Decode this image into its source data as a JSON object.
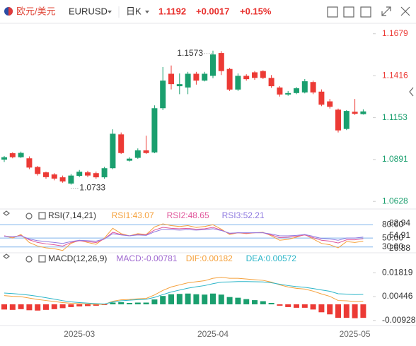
{
  "header": {
    "pair_cn": "欧元/美元",
    "symbol": "EURUSD",
    "period": "日K",
    "price": "1.1192",
    "change": "+0.0017",
    "change_pct": "+0.15%"
  },
  "chart_data": [
    {
      "type": "candlestick",
      "categories": [
        null,
        null,
        null,
        null,
        null,
        null,
        null,
        null,
        null,
        "2025-03",
        null,
        null,
        null,
        null,
        null,
        null,
        null,
        null,
        null,
        null,
        null,
        null,
        null,
        null,
        null,
        "2025-04",
        null,
        null,
        null,
        null,
        null,
        null,
        null,
        null,
        null,
        null,
        null,
        null,
        null,
        null,
        null,
        null,
        "2025-05",
        null
      ],
      "open": [
        1.089,
        1.093,
        1.0905,
        1.0898,
        1.0844,
        1.081,
        1.0797,
        1.0779,
        1.074,
        1.0788,
        1.081,
        1.0805,
        1.0779,
        1.0836,
        1.1048,
        1.0883,
        1.0901,
        1.0948,
        1.0935,
        1.1212,
        1.1428,
        1.135,
        1.1342,
        1.1428,
        1.1385,
        1.1415,
        1.1558,
        1.1458,
        1.1329,
        1.1415,
        1.1437,
        1.1445,
        1.1402,
        1.1342,
        1.1298,
        1.1307,
        1.1311,
        1.1376,
        1.1316,
        1.1255,
        1.1203,
        1.1082,
        1.119,
        1.1175
      ],
      "high": [
        1.0912,
        1.0936,
        1.094,
        1.091,
        1.085,
        1.0815,
        1.0805,
        1.079,
        1.08,
        1.0825,
        1.082,
        1.0815,
        1.0845,
        1.108,
        1.106,
        1.0905,
        1.096,
        1.104,
        1.123,
        1.147,
        1.148,
        1.143,
        1.144,
        1.144,
        1.144,
        1.1573,
        1.157,
        1.1465,
        1.143,
        1.1425,
        1.1445,
        1.145,
        1.142,
        1.135,
        1.132,
        1.1345,
        1.1395,
        1.1385,
        1.133,
        1.127,
        1.121,
        1.12,
        1.127,
        1.1205
      ],
      "low": [
        1.0875,
        1.0898,
        1.09,
        1.083,
        1.079,
        1.077,
        1.076,
        1.0745,
        1.0733,
        1.078,
        1.078,
        1.077,
        1.077,
        1.083,
        1.0925,
        1.0878,
        1.0895,
        1.0925,
        1.093,
        1.12,
        1.133,
        1.13,
        1.13,
        1.136,
        1.138,
        1.14,
        1.142,
        1.132,
        1.132,
        1.1385,
        1.139,
        1.1395,
        1.134,
        1.1285,
        1.129,
        1.13,
        1.1305,
        1.13,
        1.1225,
        1.121,
        1.106,
        1.1075,
        1.117,
        1.1172
      ],
      "close": [
        1.0905,
        1.0905,
        1.0932,
        1.084,
        1.08,
        1.078,
        1.0771,
        1.0753,
        1.079,
        1.0814,
        1.079,
        1.0779,
        1.0836,
        1.1052,
        1.0931,
        1.0896,
        1.0948,
        1.0931,
        1.1212,
        1.1385,
        1.1363,
        1.1363,
        1.1428,
        1.1385,
        1.1428,
        1.1549,
        1.1445,
        1.1329,
        1.1415,
        1.1394,
        1.1402,
        1.1402,
        1.135,
        1.1298,
        1.1307,
        1.1337,
        1.1381,
        1.1311,
        1.1234,
        1.1221,
        1.1073,
        1.1195,
        1.1177,
        1.1192
      ],
      "up_color": "#1a9f6e",
      "down_color": "#ec3a35",
      "high_label": "1.1573",
      "low_label": "1.0733",
      "ylim": [
        1.0598,
        1.1731
      ],
      "yticks": [
        1.1679,
        1.1416,
        1.1153,
        1.0891,
        1.0628
      ]
    },
    {
      "type": "line",
      "title": "RSI(7,14,21)",
      "series": [
        {
          "name": "RSI1:43.07",
          "color": "#f5a03a",
          "values": [
            55,
            50,
            58,
            40,
            32,
            28,
            26,
            22,
            38,
            45,
            40,
            36,
            50,
            72,
            60,
            55,
            60,
            58,
            75,
            82,
            78,
            76,
            78,
            74,
            76,
            80,
            70,
            58,
            62,
            60,
            62,
            63,
            55,
            45,
            47,
            52,
            58,
            48,
            38,
            35,
            28,
            42,
            40,
            43.07
          ]
        },
        {
          "name": "RSI2:48.65",
          "color": "#e0559a",
          "values": [
            55,
            52,
            56,
            46,
            40,
            37,
            35,
            32,
            40,
            44,
            42,
            40,
            48,
            63,
            58,
            55,
            58,
            57,
            68,
            74,
            72,
            71,
            72,
            70,
            71,
            74,
            68,
            60,
            62,
            61,
            62,
            62,
            57,
            51,
            52,
            54,
            57,
            51,
            45,
            43,
            39,
            46,
            46,
            48.65
          ]
        },
        {
          "name": "RSI3:52.21",
          "color": "#8f7ae0",
          "values": [
            54,
            53,
            55,
            48,
            44,
            42,
            40,
            38,
            42,
            45,
            44,
            43,
            48,
            60,
            57,
            55,
            57,
            56,
            64,
            70,
            69,
            68,
            69,
            68,
            69,
            71,
            67,
            61,
            62,
            62,
            62,
            62,
            59,
            55,
            55,
            56,
            58,
            54,
            49,
            48,
            45,
            50,
            50,
            52.21
          ]
        }
      ],
      "ylim": [
        20,
        90
      ],
      "yticks": [
        {
          "value": 80,
          "label": "80.00"
        },
        {
          "value": 50,
          "label": "50.00"
        },
        {
          "value": 30,
          "label": "30.00"
        }
      ],
      "marker_values": [
        82.94,
        54.91,
        26.88
      ],
      "grid": true,
      "grid_color": "#7fb3ec"
    },
    {
      "type": "macd",
      "title": "MACD(12,26,9)",
      "series": [
        {
          "name": "MACD:-0.00781",
          "color": "#a06ad0",
          "up_color": "#1a9f6e",
          "down_color": "#ec3a35",
          "values": [
            -0.003,
            -0.0032,
            -0.0028,
            -0.0034,
            -0.0036,
            -0.0032,
            -0.0028,
            -0.0022,
            -0.0016,
            -0.0012,
            -0.001,
            -0.0008,
            -0.0004,
            0.001,
            0.0012,
            0.0008,
            0.001,
            0.001,
            0.0028,
            0.0048,
            0.0058,
            0.006,
            0.0062,
            0.0058,
            0.0056,
            0.0062,
            0.0056,
            0.0042,
            0.0038,
            0.003,
            0.0024,
            0.0018,
            0.0008,
            -0.0008,
            -0.0016,
            -0.002,
            -0.002,
            -0.003,
            -0.0046,
            -0.0058,
            -0.0078,
            -0.0078,
            -0.008,
            -0.00781
          ]
        },
        {
          "name": "DIF:0.00182",
          "color": "#f5a03a",
          "values": [
            0.005,
            0.0046,
            0.0044,
            0.0036,
            0.0028,
            0.0022,
            0.0016,
            0.001,
            0.0006,
            0.0004,
            0.0002,
            0.0,
            0.0,
            0.0018,
            0.0026,
            0.0028,
            0.0032,
            0.0034,
            0.0054,
            0.008,
            0.01,
            0.0112,
            0.0124,
            0.013,
            0.0136,
            0.015,
            0.0156,
            0.015,
            0.015,
            0.0146,
            0.0142,
            0.0138,
            0.0128,
            0.0112,
            0.01,
            0.0092,
            0.0088,
            0.0076,
            0.006,
            0.0046,
            0.0022,
            0.002,
            0.0016,
            0.00182
          ]
        },
        {
          "name": "DEA:0.00572",
          "color": "#2bb5c8",
          "values": [
            0.0065,
            0.0062,
            0.0058,
            0.0053,
            0.0046,
            0.0038,
            0.003,
            0.0021,
            0.0014,
            0.001,
            0.0007,
            0.0004,
            0.0002,
            0.0013,
            0.002,
            0.0024,
            0.0027,
            0.0029,
            0.004,
            0.0056,
            0.0071,
            0.0082,
            0.0093,
            0.0101,
            0.0108,
            0.0119,
            0.0128,
            0.0129,
            0.0131,
            0.0131,
            0.013,
            0.0129,
            0.0124,
            0.0116,
            0.0108,
            0.0102,
            0.0098,
            0.0091,
            0.0083,
            0.0075,
            0.0061,
            0.0059,
            0.0056,
            0.00572
          ]
        }
      ],
      "ylim": [
        -0.011,
        0.024
      ],
      "yticks": [
        0.01819,
        0.00446,
        -0.00928
      ]
    }
  ]
}
